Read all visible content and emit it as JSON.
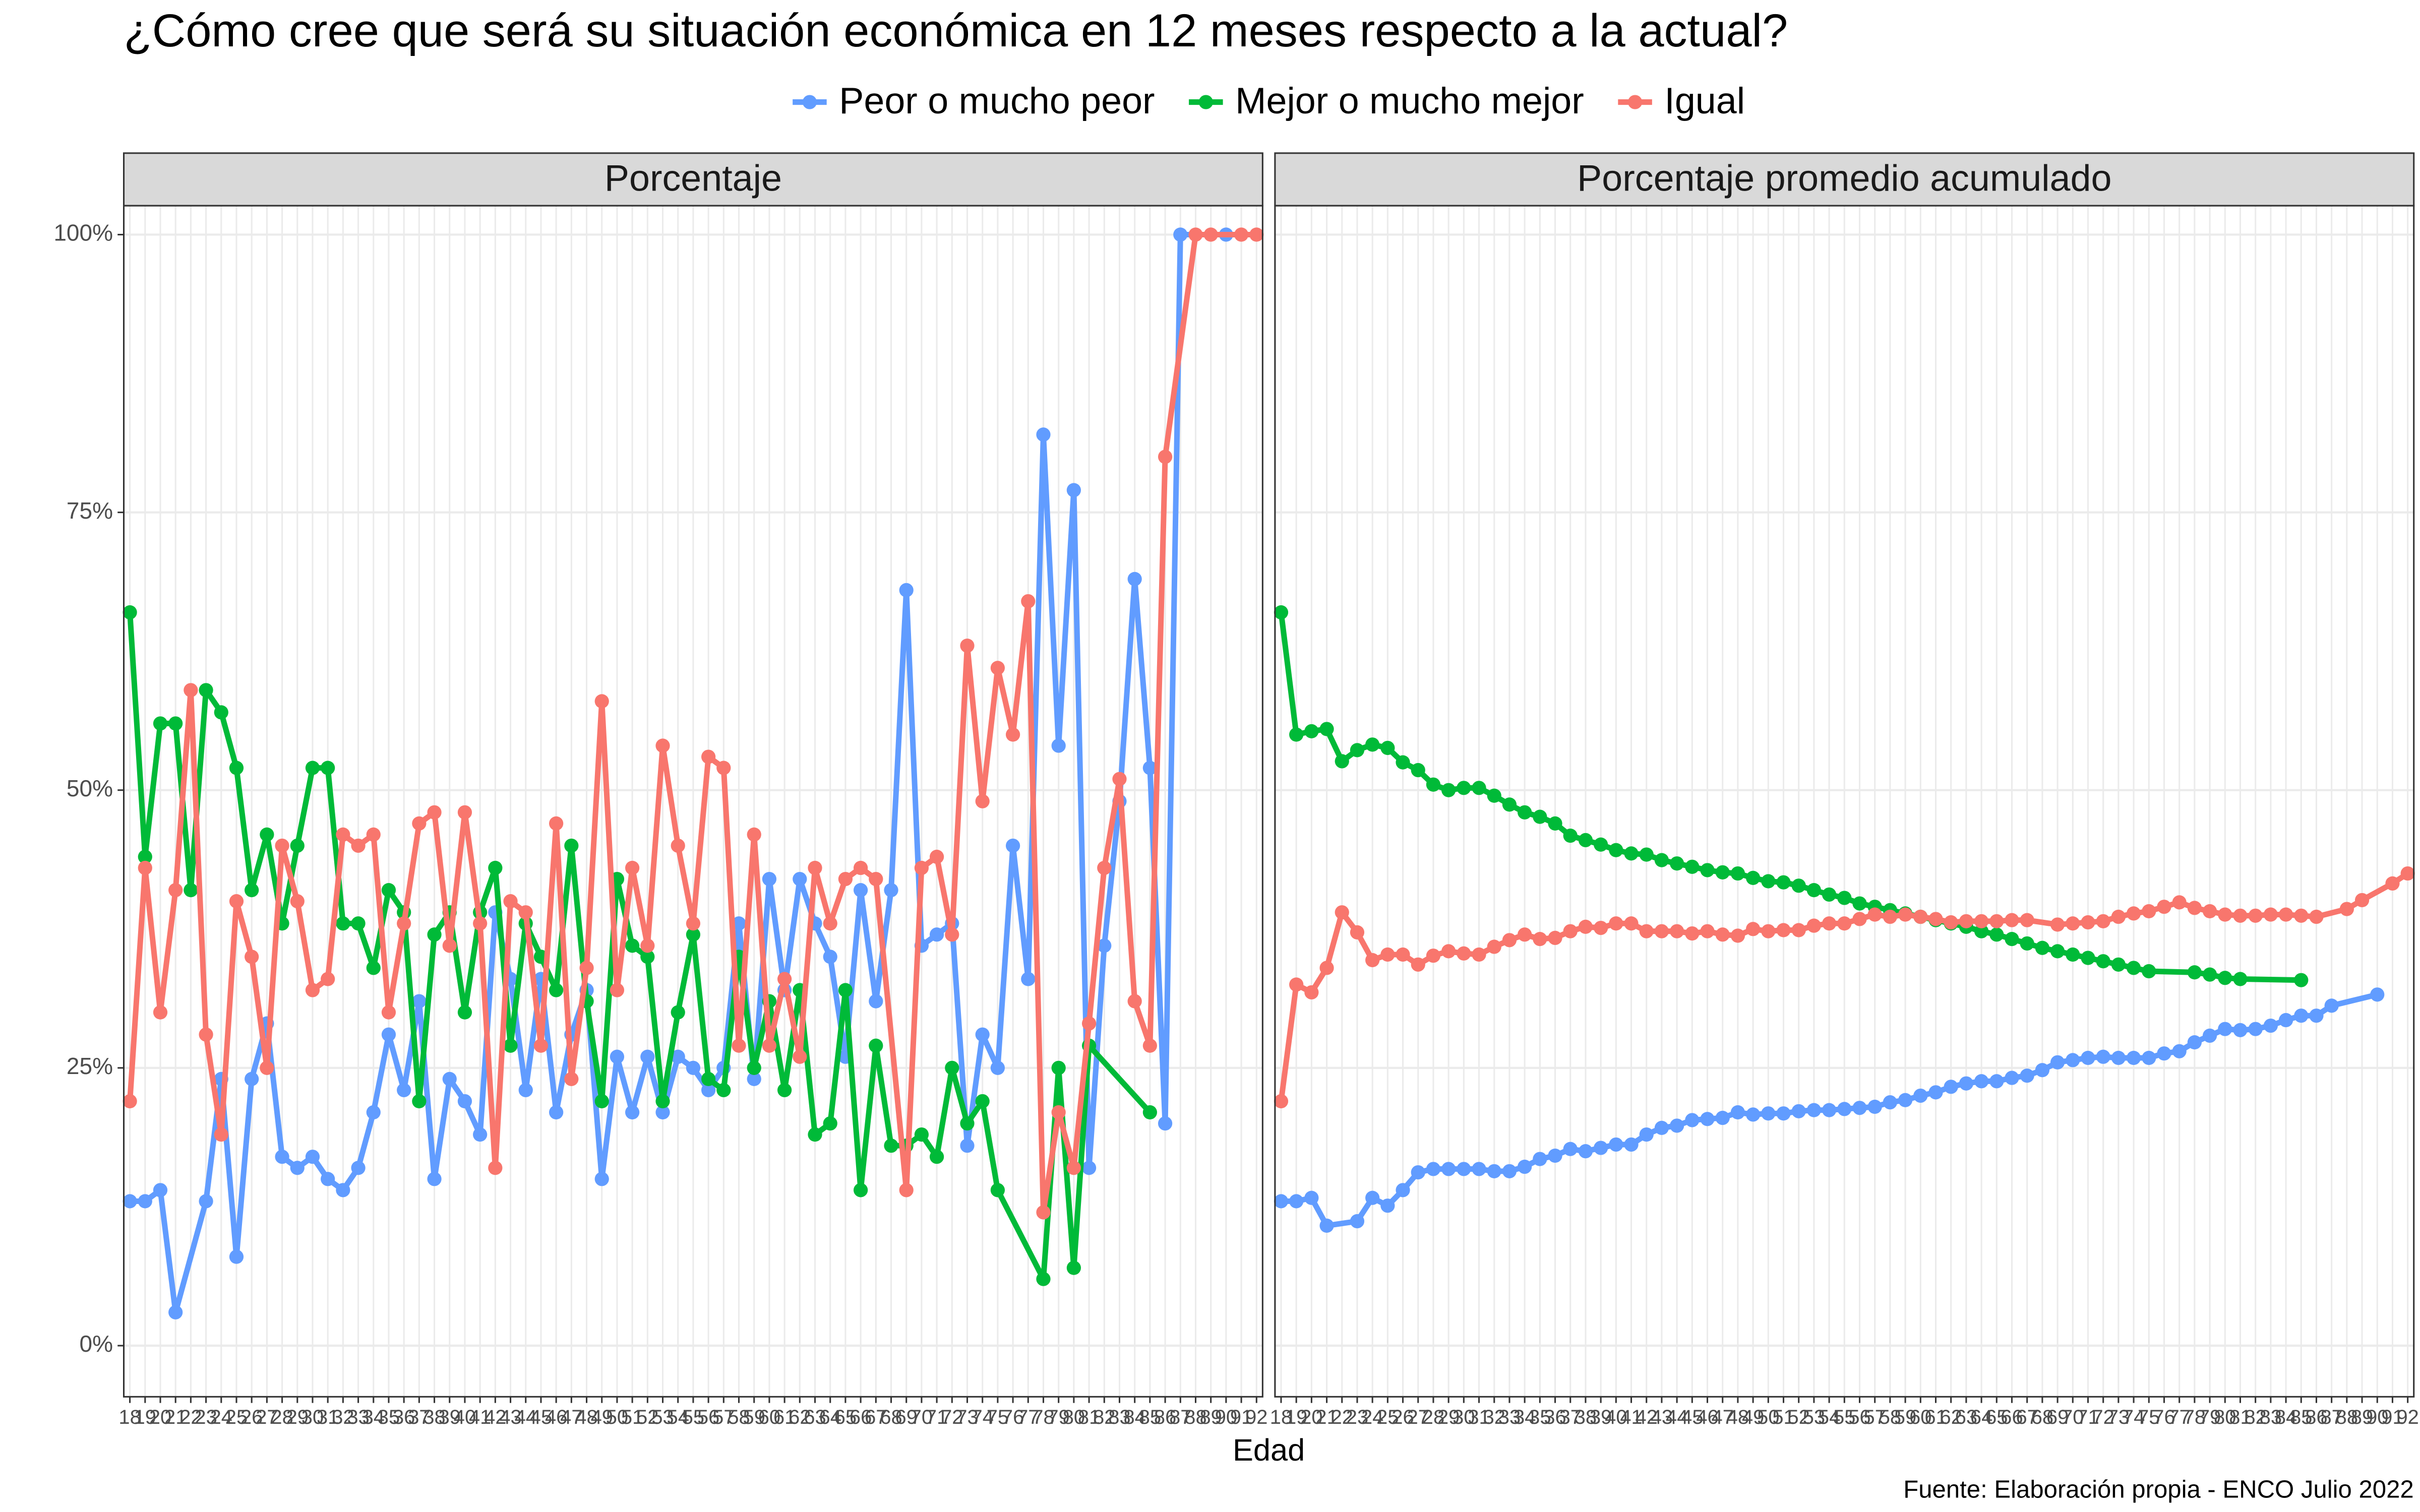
{
  "title": "¿Cómo cree que será su situación económica en 12 meses respecto a la actual?",
  "x_label": "Edad",
  "caption": "Fuente: Elaboración propia - ENCO Julio 2022",
  "chart_data": [
    {
      "type": "line",
      "title": "Porcentaje",
      "grid": true,
      "xlim": [
        17.6,
        92.4
      ],
      "ylim": [
        -4.6,
        102.6
      ],
      "xticks": [
        18,
        19,
        20,
        21,
        22,
        23,
        24,
        25,
        26,
        27,
        28,
        29,
        30,
        31,
        32,
        33,
        34,
        35,
        36,
        37,
        38,
        39,
        40,
        41,
        42,
        43,
        44,
        45,
        46,
        47,
        48,
        49,
        50,
        51,
        52,
        53,
        54,
        55,
        56,
        57,
        58,
        59,
        60,
        61,
        62,
        63,
        64,
        65,
        66,
        67,
        68,
        69,
        70,
        71,
        72,
        73,
        74,
        75,
        76,
        77,
        78,
        79,
        80,
        81,
        82,
        83,
        84,
        85,
        86,
        87,
        88,
        89,
        90,
        91,
        92
      ],
      "yticks": [
        {
          "value": 0,
          "label": "0%"
        },
        {
          "value": 25,
          "label": "25%"
        },
        {
          "value": 50,
          "label": "50%"
        },
        {
          "value": 75,
          "label": "75%"
        },
        {
          "value": 100,
          "label": "100%"
        }
      ],
      "series": [
        {
          "name": "Peor o mucho peor",
          "color": "#619CFF",
          "x": [
            18,
            19,
            20,
            21,
            23,
            24,
            25,
            26,
            27,
            28,
            29,
            30,
            31,
            32,
            33,
            34,
            35,
            36,
            37,
            38,
            39,
            40,
            41,
            42,
            43,
            44,
            45,
            46,
            47,
            48,
            49,
            50,
            51,
            52,
            53,
            54,
            55,
            56,
            57,
            58,
            59,
            60,
            61,
            62,
            63,
            64,
            65,
            66,
            67,
            68,
            69,
            70,
            71,
            72,
            73,
            74,
            75,
            76,
            77,
            78,
            79,
            80,
            81,
            82,
            83,
            84,
            85,
            86,
            87,
            90
          ],
          "values": [
            13,
            13,
            14,
            3,
            13,
            24,
            8,
            24,
            29,
            17,
            16,
            17,
            15,
            14,
            16,
            21,
            28,
            23,
            31,
            15,
            24,
            22,
            19,
            39,
            33,
            23,
            33,
            21,
            28,
            32,
            15,
            26,
            21,
            26,
            21,
            26,
            25,
            23,
            25,
            38,
            24,
            42,
            32,
            42,
            38,
            35,
            26,
            41,
            31,
            41,
            68,
            36,
            37,
            38,
            18,
            28,
            25,
            45,
            33,
            82,
            54,
            77,
            16,
            36,
            49,
            69,
            52,
            20,
            100,
            100
          ]
        },
        {
          "name": "Mejor o mucho mejor",
          "color": "#00BA38",
          "x": [
            18,
            19,
            20,
            21,
            22,
            23,
            24,
            25,
            26,
            27,
            28,
            29,
            30,
            31,
            32,
            33,
            34,
            35,
            36,
            37,
            38,
            39,
            40,
            41,
            42,
            43,
            44,
            45,
            46,
            47,
            48,
            49,
            50,
            51,
            52,
            53,
            54,
            55,
            56,
            57,
            58,
            59,
            60,
            61,
            62,
            63,
            64,
            65,
            66,
            67,
            68,
            69,
            70,
            71,
            72,
            73,
            74,
            75,
            78,
            79,
            80,
            81,
            85
          ],
          "values": [
            66,
            44,
            56,
            56,
            41,
            59,
            57,
            52,
            41,
            46,
            38,
            45,
            52,
            52,
            38,
            38,
            34,
            41,
            39,
            22,
            37,
            39,
            30,
            39,
            43,
            27,
            38,
            35,
            32,
            45,
            31,
            22,
            42,
            36,
            35,
            22,
            30,
            37,
            24,
            23,
            35,
            25,
            31,
            23,
            32,
            19,
            20,
            32,
            14,
            27,
            18,
            18,
            19,
            17,
            25,
            20,
            22,
            14,
            6,
            25,
            7,
            27,
            21
          ]
        },
        {
          "name": "Igual",
          "color": "#F8766D",
          "x": [
            18,
            19,
            20,
            21,
            22,
            23,
            24,
            25,
            26,
            27,
            28,
            29,
            30,
            31,
            32,
            33,
            34,
            35,
            36,
            37,
            38,
            39,
            40,
            41,
            42,
            43,
            44,
            45,
            46,
            47,
            48,
            49,
            50,
            51,
            52,
            53,
            54,
            55,
            56,
            57,
            58,
            59,
            60,
            61,
            62,
            63,
            64,
            65,
            66,
            67,
            69,
            70,
            71,
            72,
            73,
            74,
            75,
            76,
            77,
            78,
            79,
            80,
            81,
            82,
            83,
            84,
            85,
            86,
            88,
            89,
            91,
            92
          ],
          "values": [
            22,
            43,
            30,
            41,
            59,
            28,
            19,
            40,
            35,
            25,
            45,
            40,
            32,
            33,
            46,
            45,
            46,
            30,
            38,
            47,
            48,
            36,
            48,
            38,
            16,
            40,
            39,
            27,
            47,
            24,
            34,
            58,
            32,
            43,
            36,
            54,
            45,
            38,
            53,
            52,
            27,
            46,
            27,
            33,
            26,
            43,
            38,
            42,
            43,
            42,
            14,
            43,
            44,
            37,
            63,
            49,
            61,
            55,
            67,
            12,
            21,
            16,
            29,
            43,
            51,
            31,
            27,
            80,
            100,
            100,
            100,
            100
          ]
        }
      ]
    },
    {
      "type": "line",
      "title": "Porcentaje promedio acumulado",
      "grid": true,
      "xlim": [
        17.6,
        92.4
      ],
      "ylim": [
        -4.6,
        102.6
      ],
      "xticks": [
        18,
        19,
        20,
        21,
        22,
        23,
        24,
        25,
        26,
        27,
        28,
        29,
        30,
        31,
        32,
        33,
        34,
        35,
        36,
        37,
        38,
        39,
        40,
        41,
        42,
        43,
        44,
        45,
        46,
        47,
        48,
        49,
        50,
        51,
        52,
        53,
        54,
        55,
        56,
        57,
        58,
        59,
        60,
        61,
        62,
        63,
        64,
        65,
        66,
        67,
        68,
        69,
        70,
        71,
        72,
        73,
        74,
        75,
        76,
        77,
        78,
        79,
        80,
        81,
        82,
        83,
        84,
        85,
        86,
        87,
        88,
        89,
        90,
        91,
        92
      ],
      "series": [
        {
          "name": "Peor o mucho peor",
          "color": "#619CFF",
          "x": [
            18,
            19,
            20,
            21,
            23,
            24,
            25,
            26,
            27,
            28,
            29,
            30,
            31,
            32,
            33,
            34,
            35,
            36,
            37,
            38,
            39,
            40,
            41,
            42,
            43,
            44,
            45,
            46,
            47,
            48,
            49,
            50,
            51,
            52,
            53,
            54,
            55,
            56,
            57,
            58,
            59,
            60,
            61,
            62,
            63,
            64,
            65,
            66,
            67,
            68,
            69,
            70,
            71,
            72,
            73,
            74,
            75,
            76,
            77,
            78,
            79,
            80,
            81,
            82,
            83,
            84,
            85,
            86,
            87,
            90
          ],
          "values": [
            13,
            13,
            13.3,
            10.8,
            11.2,
            13.3,
            12.6,
            14,
            15.6,
            15.9,
            15.9,
            15.9,
            15.9,
            15.7,
            15.7,
            16.1,
            16.8,
            17.1,
            17.7,
            17.5,
            17.8,
            18.1,
            18.1,
            19,
            19.6,
            19.8,
            20.3,
            20.4,
            20.5,
            21,
            20.8,
            20.9,
            20.9,
            21.1,
            21.2,
            21.2,
            21.3,
            21.4,
            21.5,
            21.9,
            22.1,
            22.5,
            22.8,
            23.3,
            23.6,
            23.8,
            23.8,
            24.1,
            24.3,
            24.8,
            25.5,
            25.7,
            25.9,
            26,
            25.9,
            25.9,
            25.9,
            26.3,
            26.5,
            27.3,
            27.9,
            28.5,
            28.4,
            28.5,
            28.8,
            29.3,
            29.7,
            29.7,
            30.6,
            31.6
          ]
        },
        {
          "name": "Mejor o mucho mejor",
          "color": "#00BA38",
          "x": [
            18,
            19,
            20,
            21,
            22,
            23,
            24,
            25,
            26,
            27,
            28,
            29,
            30,
            31,
            32,
            33,
            34,
            35,
            36,
            37,
            38,
            39,
            40,
            41,
            42,
            43,
            44,
            45,
            46,
            47,
            48,
            49,
            50,
            51,
            52,
            53,
            54,
            55,
            56,
            57,
            58,
            59,
            60,
            61,
            62,
            63,
            64,
            65,
            66,
            67,
            68,
            69,
            70,
            71,
            72,
            73,
            74,
            75,
            78,
            79,
            80,
            81,
            85
          ],
          "values": [
            66,
            55,
            55.3,
            55.5,
            52.6,
            53.6,
            54.1,
            53.8,
            52.5,
            51.8,
            50.5,
            50,
            50.2,
            50.2,
            49.5,
            48.7,
            48,
            47.6,
            47,
            45.9,
            45.5,
            45.1,
            44.6,
            44.3,
            44.2,
            43.7,
            43.4,
            43.1,
            42.8,
            42.6,
            42.5,
            42.1,
            41.8,
            41.7,
            41.4,
            41,
            40.6,
            40.3,
            39.8,
            39.5,
            39.2,
            38.9,
            38.6,
            38.3,
            38,
            37.7,
            37.3,
            37,
            36.6,
            36.2,
            35.8,
            35.5,
            35.2,
            34.9,
            34.6,
            34.3,
            34,
            33.7,
            33.6,
            33.4,
            33.1,
            33,
            32.9
          ]
        },
        {
          "name": "Igual",
          "color": "#F8766D",
          "x": [
            18,
            19,
            20,
            21,
            22,
            23,
            24,
            25,
            26,
            27,
            28,
            29,
            30,
            31,
            32,
            33,
            34,
            35,
            36,
            37,
            38,
            39,
            40,
            41,
            42,
            43,
            44,
            45,
            46,
            47,
            48,
            49,
            50,
            51,
            52,
            53,
            54,
            55,
            56,
            57,
            58,
            59,
            60,
            61,
            62,
            63,
            64,
            65,
            66,
            67,
            69,
            70,
            71,
            72,
            73,
            74,
            75,
            76,
            77,
            78,
            79,
            80,
            81,
            82,
            83,
            84,
            85,
            86,
            88,
            89,
            91,
            92
          ],
          "values": [
            22,
            32.5,
            31.8,
            34,
            39,
            37.2,
            34.7,
            35.2,
            35.2,
            34.3,
            35.1,
            35.5,
            35.3,
            35.2,
            35.9,
            36.5,
            37,
            36.6,
            36.7,
            37.3,
            37.7,
            37.6,
            38,
            38,
            37.3,
            37.3,
            37.3,
            37.1,
            37.3,
            37,
            36.9,
            37.5,
            37.3,
            37.4,
            37.4,
            37.8,
            38,
            38,
            38.4,
            38.8,
            38.6,
            38.8,
            38.6,
            38.4,
            38.1,
            38.2,
            38.2,
            38.2,
            38.3,
            38.3,
            37.9,
            38,
            38.1,
            38.2,
            38.6,
            38.9,
            39.1,
            39.5,
            39.9,
            39.4,
            39.1,
            38.8,
            38.7,
            38.7,
            38.8,
            38.8,
            38.7,
            38.6,
            39.3,
            40.1,
            41.6,
            42.5
          ]
        }
      ]
    }
  ]
}
